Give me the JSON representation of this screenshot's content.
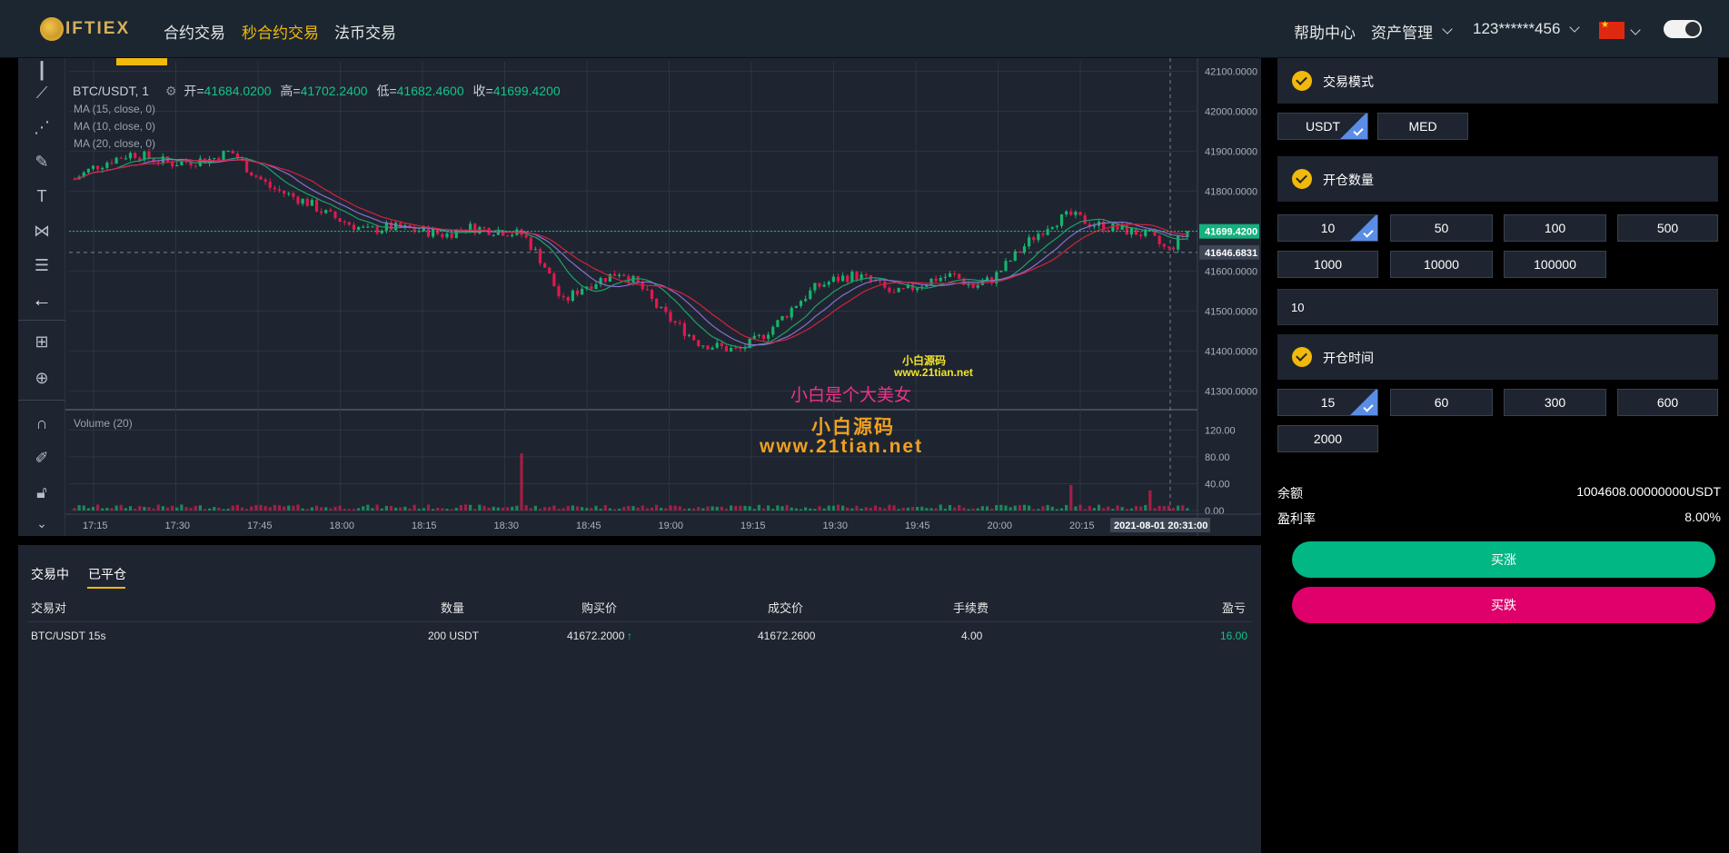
{
  "nav": {
    "logo_text": "IFTIEX",
    "items": [
      "合约交易",
      "秒合约交易",
      "法币交易"
    ],
    "active_index": 1,
    "help": "帮助中心",
    "assets": "资产管理",
    "user": "123******456"
  },
  "chart": {
    "symbol": "BTC/USDT, 1",
    "open_label": "开=",
    "open": "41684.0200",
    "high_label": "高=",
    "high": "41702.2400",
    "low_label": "低=",
    "low": "41682.4600",
    "close_label": "收=",
    "close": "41699.4200",
    "ma": [
      "MA (15, close, 0)",
      "MA (10, close, 0)",
      "MA (20, close, 0)"
    ],
    "volume_label": "Volume (20)",
    "last_price_tag": "41699.4200",
    "cross_price_tag": "41646.6831",
    "cursor_time": "2021-08-01 20:31:00",
    "watermarks": [
      "小白源码",
      "www.21tian.net",
      "小白是个大美女",
      "小白源码",
      "www.21tian.net"
    ],
    "colors": {
      "up": "#15b46c",
      "down": "#e0194e",
      "bg": "#1e2530"
    }
  },
  "chart_data": {
    "type": "candlestick",
    "title": "",
    "price_axis_ticks": [
      "42100.0000",
      "42000.0000",
      "41900.0000",
      "41800.0000",
      "41700.0000",
      "41600.0000",
      "41500.0000",
      "41400.0000",
      "41300.0000"
    ],
    "price_range": [
      41260,
      42110
    ],
    "volume_axis_ticks": [
      "120.00",
      "80.00",
      "40.00",
      "0.00"
    ],
    "volume_range": [
      0,
      130
    ],
    "time_ticks": [
      "17:15",
      "17:30",
      "17:45",
      "18:00",
      "18:15",
      "18:30",
      "18:45",
      "19:00",
      "19:15",
      "19:30",
      "19:45",
      "20:00",
      "20:15"
    ],
    "close_path": [
      41830,
      41860,
      41880,
      41895,
      41880,
      41870,
      41875,
      41880,
      41900,
      41850,
      41810,
      41790,
      41770,
      41740,
      41720,
      41700,
      41710,
      41705,
      41700,
      41690,
      41710,
      41705,
      41700,
      41690,
      41620,
      41520,
      41560,
      41580,
      41600,
      41560,
      41500,
      41460,
      41420,
      41410,
      41400,
      41430,
      41470,
      41520,
      41560,
      41580,
      41590,
      41570,
      41540,
      41560,
      41580,
      41590,
      41560,
      41580,
      41630,
      41680,
      41720,
      41740,
      41720,
      41710,
      41700,
      41690,
      41650,
      41700
    ],
    "volume_spikes": [
      {
        "x_index": 23,
        "value": 85
      },
      {
        "x_index": 51,
        "value": 38
      },
      {
        "x_index": 55,
        "value": 30
      }
    ]
  },
  "orders": {
    "tabs": [
      "交易中",
      "已平仓"
    ],
    "active_tab": 1,
    "headers": [
      "交易对",
      "数量",
      "购买价",
      "成交价",
      "手续费",
      "盈亏"
    ],
    "rows": [
      {
        "pair": "BTC/USDT 15s",
        "qty": "200 USDT",
        "buy": "41672.2000",
        "deal": "41672.2600",
        "fee": "4.00",
        "pnl": "16.00"
      }
    ]
  },
  "panel": {
    "mode_title": "交易模式",
    "modes": [
      "USDT",
      "MED"
    ],
    "qty_title": "开仓数量",
    "qty_options": [
      "10",
      "50",
      "100",
      "500",
      "1000",
      "10000",
      "100000"
    ],
    "qty_value": "10",
    "time_title": "开仓时间",
    "time_options": [
      "15",
      "60",
      "300",
      "600",
      "2000"
    ],
    "balance_label": "余额",
    "balance": "1004608.00000000USDT",
    "rate_label": "盈利率",
    "rate": "8.00%",
    "buy_up": "买涨",
    "buy_down": "买跌"
  }
}
